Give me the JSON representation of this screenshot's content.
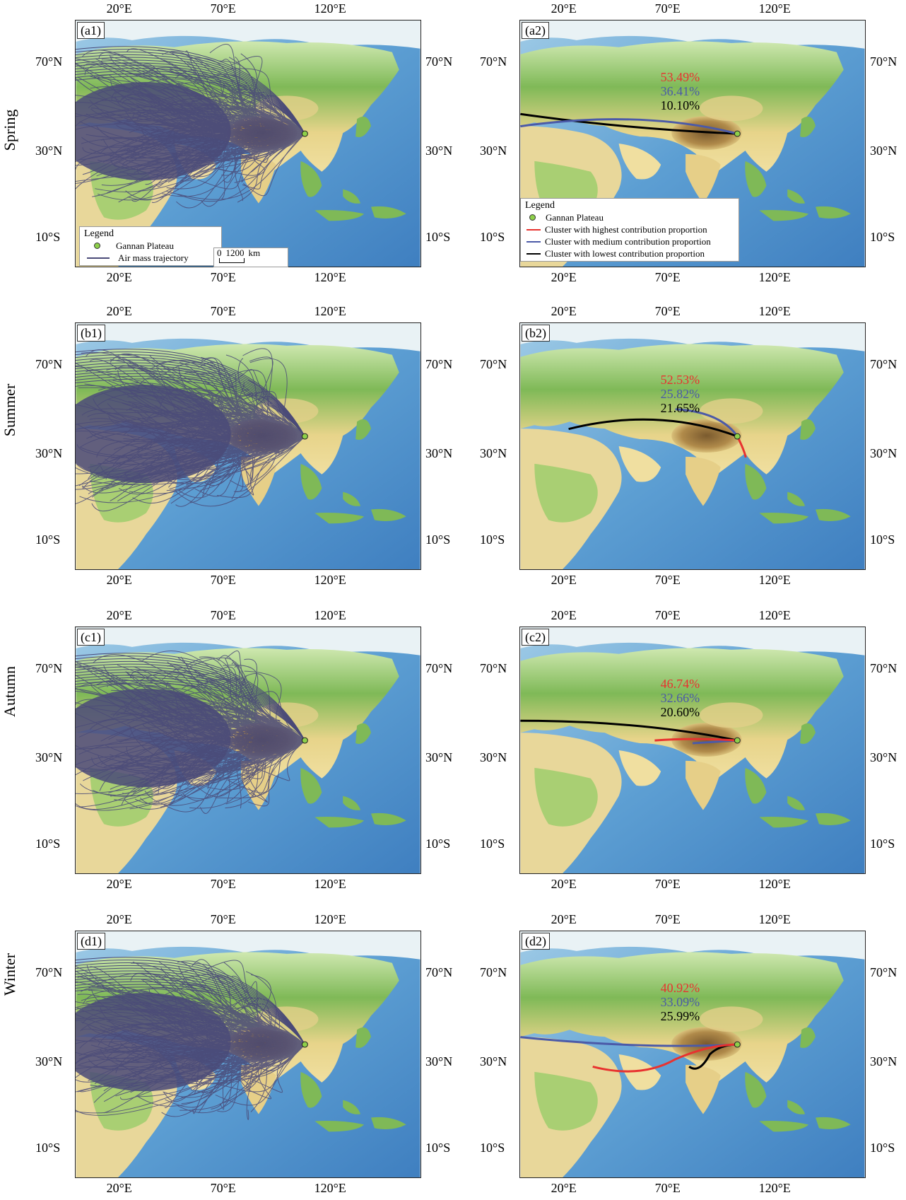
{
  "seasons": [
    "Spring",
    "Summer",
    "Autumn",
    "Winter"
  ],
  "axis_ticks": {
    "lon": [
      "20°E",
      "70°E",
      "120°E"
    ],
    "lat": [
      "70°N",
      "30°N",
      "10°S"
    ]
  },
  "panels": [
    {
      "label": "(a1)",
      "season": "Spring",
      "kind": "trajectory"
    },
    {
      "label": "(a2)",
      "season": "Spring",
      "kind": "cluster",
      "percentages": {
        "highest": "53.49%",
        "medium": "36.41%",
        "lowest": "10.10%"
      }
    },
    {
      "label": "(b1)",
      "season": "Summer",
      "kind": "trajectory"
    },
    {
      "label": "(b2)",
      "season": "Summer",
      "kind": "cluster",
      "percentages": {
        "highest": "52.53%",
        "medium": "25.82%",
        "lowest": "21.65%"
      }
    },
    {
      "label": "(c1)",
      "season": "Autumn",
      "kind": "trajectory"
    },
    {
      "label": "(c2)",
      "season": "Autumn",
      "kind": "cluster",
      "percentages": {
        "highest": "46.74%",
        "medium": "32.66%",
        "lowest": "20.60%"
      }
    },
    {
      "label": "(d1)",
      "season": "Winter",
      "kind": "trajectory"
    },
    {
      "label": "(d2)",
      "season": "Winter",
      "kind": "cluster",
      "percentages": {
        "highest": "40.92%",
        "medium": "33.09%",
        "lowest": "25.99%"
      }
    }
  ],
  "legend_trajectory": {
    "title": "Legend",
    "site": "Gannan Plateau",
    "trajectory": "Air mass trajectory"
  },
  "scale_bar": {
    "zero": "0",
    "distance": "1200",
    "unit": "km"
  },
  "legend_cluster": {
    "title": "Legend",
    "site": "Gannan Plateau",
    "highest": "Cluster with highest contribution proportion",
    "medium": "Cluster with medium contribution proportion",
    "lowest": "Cluster with lowest contribution proportion"
  },
  "colors": {
    "trajectory": "#4a4a78",
    "highest": "#e8322f",
    "medium": "#4b5aa8",
    "lowest": "#000000",
    "site": "#8ed04a",
    "ocean": "#5b9bd0",
    "land": "#9cc66a",
    "plateau": "#8a6a3a"
  }
}
